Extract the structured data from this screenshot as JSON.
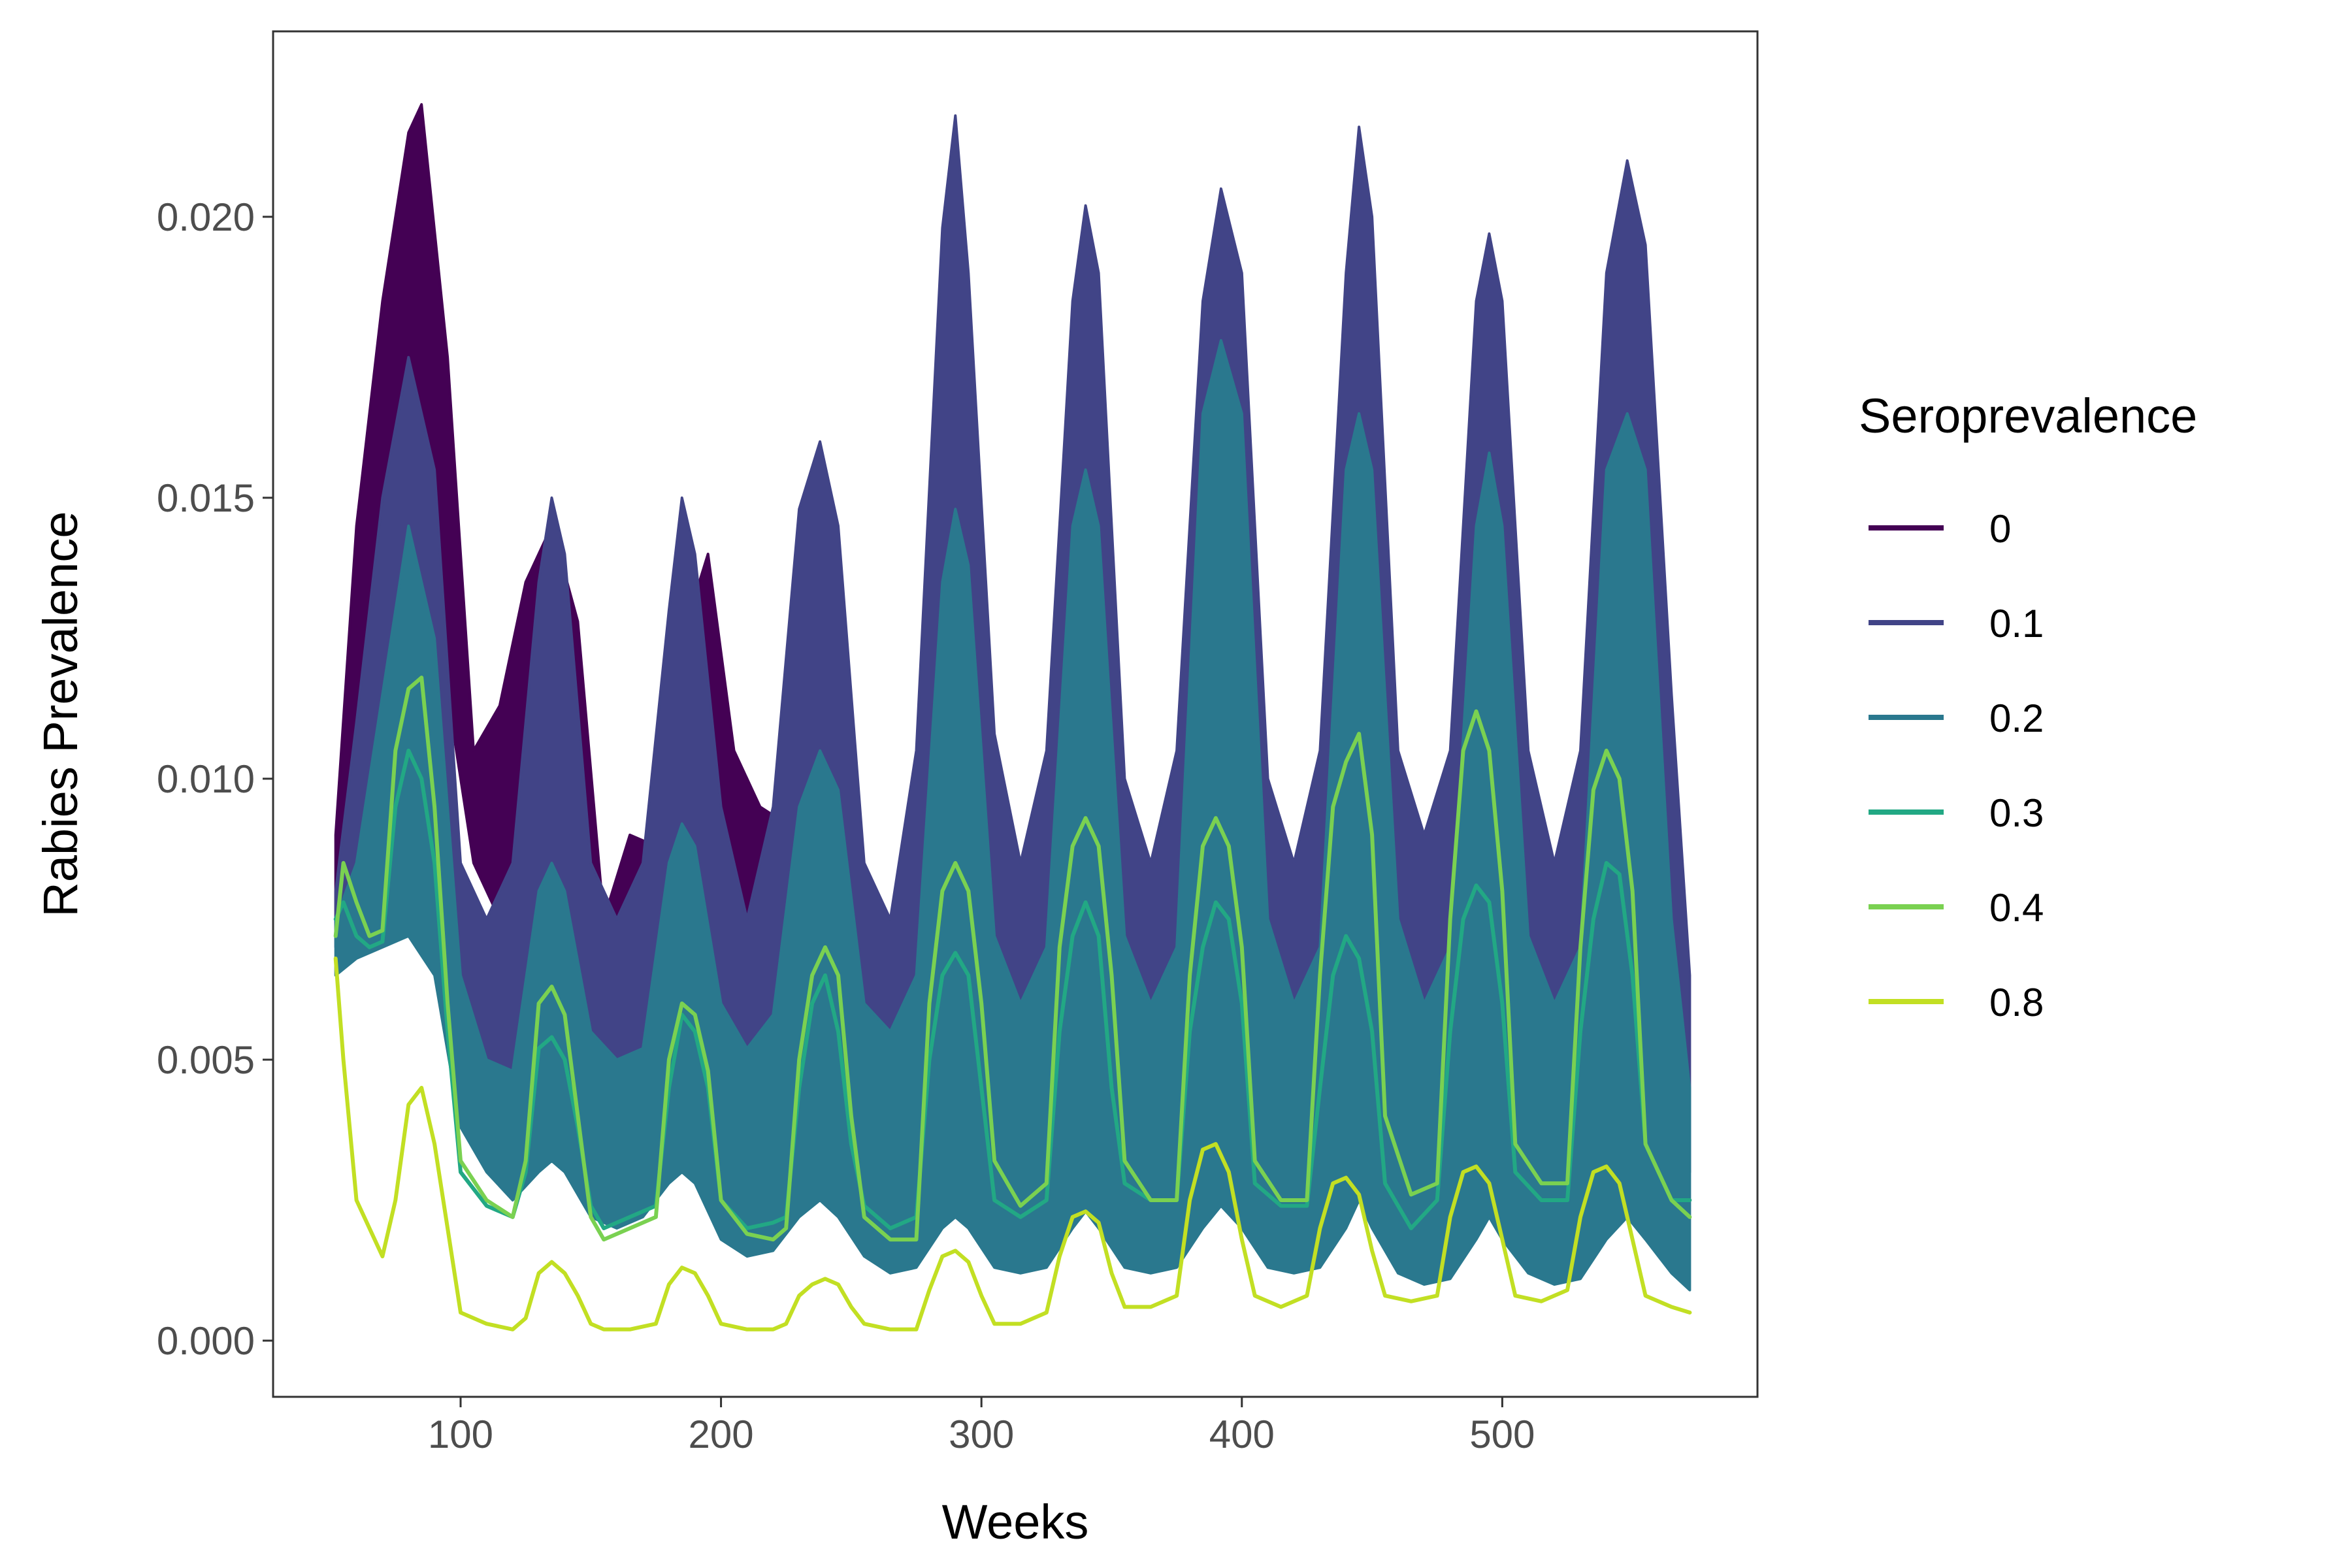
{
  "chart_data": {
    "type": "line",
    "xlabel": "Weeks",
    "ylabel": "Rabies Prevalence",
    "xlim": [
      28,
      598
    ],
    "ylim": [
      -0.001,
      0.0233
    ],
    "x_ticks": [
      100,
      200,
      300,
      400,
      500
    ],
    "x_tick_labels": [
      "100",
      "200",
      "300",
      "400",
      "500"
    ],
    "y_ticks": [
      0,
      0.005,
      0.01,
      0.015,
      0.02
    ],
    "y_tick_labels": [
      "0.000",
      "0.005",
      "0.010",
      "0.015",
      "0.020"
    ],
    "grid": false,
    "legend": {
      "title": "Seroprevalence",
      "placement": "right"
    },
    "series": [
      {
        "name": "0",
        "color": "#440154",
        "style": "band",
        "x": [
          52,
          60,
          70,
          80,
          85,
          95,
          105,
          115,
          125,
          135,
          145,
          155,
          165,
          175,
          185,
          195,
          205,
          215,
          225
        ],
        "upper": [
          0.009,
          0.0145,
          0.0185,
          0.0215,
          0.022,
          0.0175,
          0.0105,
          0.0113,
          0.0135,
          0.0145,
          0.0128,
          0.0075,
          0.009,
          0.0088,
          0.0125,
          0.014,
          0.0105,
          0.0095,
          0.0092
        ],
        "lower": [
          0.0075,
          0.009,
          0.0125,
          0.0145,
          0.0155,
          0.0115,
          0.0085,
          0.0075,
          0.0065,
          0.0075,
          0.0065,
          0.005,
          0.0055,
          0.006,
          0.0065,
          0.007,
          0.0065,
          0.006,
          0.006
        ]
      },
      {
        "name": "0.1",
        "color": "#414487",
        "style": "band",
        "x": [
          52,
          60,
          70,
          80,
          90,
          100,
          110,
          120,
          130,
          135,
          140,
          150,
          160,
          170,
          180,
          185,
          190,
          200,
          210,
          220,
          230,
          238,
          245,
          255,
          265,
          275,
          285,
          290,
          295,
          305,
          315,
          325,
          335,
          340,
          345,
          355,
          365,
          375,
          385,
          392,
          400,
          410,
          420,
          430,
          440,
          445,
          450,
          460,
          470,
          480,
          490,
          495,
          500,
          510,
          520,
          530,
          540,
          548,
          555,
          565,
          572
        ],
        "upper": [
          0.008,
          0.011,
          0.015,
          0.0175,
          0.0155,
          0.0085,
          0.0075,
          0.0085,
          0.0135,
          0.015,
          0.014,
          0.0085,
          0.0075,
          0.0085,
          0.013,
          0.015,
          0.014,
          0.0095,
          0.0075,
          0.0095,
          0.0148,
          0.016,
          0.0145,
          0.0085,
          0.0075,
          0.0105,
          0.0198,
          0.0218,
          0.019,
          0.0108,
          0.0085,
          0.0105,
          0.0185,
          0.0202,
          0.019,
          0.01,
          0.0085,
          0.0105,
          0.0185,
          0.0205,
          0.019,
          0.01,
          0.0085,
          0.0105,
          0.019,
          0.0216,
          0.02,
          0.0105,
          0.009,
          0.0105,
          0.0185,
          0.0197,
          0.0185,
          0.0105,
          0.0085,
          0.0105,
          0.019,
          0.021,
          0.0195,
          0.0115,
          0.0065
        ],
        "lower": [
          0.007,
          0.0075,
          0.0085,
          0.0085,
          0.0075,
          0.0045,
          0.004,
          0.004,
          0.0055,
          0.006,
          0.0055,
          0.0035,
          0.003,
          0.0035,
          0.005,
          0.0055,
          0.005,
          0.0035,
          0.003,
          0.0035,
          0.005,
          0.0055,
          0.005,
          0.003,
          0.0028,
          0.0035,
          0.0055,
          0.006,
          0.0055,
          0.0035,
          0.003,
          0.0035,
          0.0055,
          0.006,
          0.0055,
          0.0035,
          0.003,
          0.0035,
          0.0055,
          0.006,
          0.0055,
          0.0035,
          0.003,
          0.0035,
          0.0055,
          0.006,
          0.0055,
          0.0035,
          0.003,
          0.0035,
          0.0055,
          0.006,
          0.0055,
          0.0035,
          0.003,
          0.0035,
          0.0055,
          0.006,
          0.0055,
          0.0035,
          0.003
        ]
      },
      {
        "name": "0.2",
        "color": "#2a788e",
        "style": "band",
        "x": [
          52,
          60,
          70,
          80,
          90,
          100,
          110,
          120,
          130,
          135,
          140,
          150,
          160,
          170,
          180,
          185,
          190,
          200,
          210,
          220,
          230,
          238,
          245,
          255,
          265,
          275,
          285,
          290,
          295,
          305,
          315,
          325,
          335,
          340,
          345,
          355,
          365,
          375,
          385,
          392,
          400,
          410,
          420,
          430,
          440,
          445,
          450,
          460,
          470,
          480,
          490,
          495,
          500,
          510,
          520,
          530,
          540,
          548,
          555,
          565,
          572
        ],
        "upper": [
          0.0075,
          0.0085,
          0.0115,
          0.0145,
          0.0125,
          0.0065,
          0.005,
          0.0048,
          0.008,
          0.0085,
          0.008,
          0.0055,
          0.005,
          0.0052,
          0.0085,
          0.0092,
          0.0088,
          0.006,
          0.0052,
          0.0058,
          0.0095,
          0.0105,
          0.0098,
          0.006,
          0.0055,
          0.0065,
          0.0135,
          0.0148,
          0.0138,
          0.0072,
          0.006,
          0.007,
          0.0145,
          0.0155,
          0.0145,
          0.0072,
          0.006,
          0.007,
          0.0165,
          0.0178,
          0.0165,
          0.0075,
          0.006,
          0.007,
          0.0155,
          0.0165,
          0.0155,
          0.0075,
          0.006,
          0.007,
          0.0145,
          0.0158,
          0.0145,
          0.0072,
          0.006,
          0.007,
          0.0155,
          0.0165,
          0.0155,
          0.0075,
          0.0045
        ],
        "lower": [
          0.0065,
          0.0068,
          0.007,
          0.0072,
          0.0065,
          0.0038,
          0.003,
          0.0025,
          0.003,
          0.0032,
          0.003,
          0.0022,
          0.002,
          0.0022,
          0.0028,
          0.003,
          0.0028,
          0.0018,
          0.0015,
          0.0016,
          0.0022,
          0.0025,
          0.0022,
          0.0015,
          0.0012,
          0.0013,
          0.002,
          0.0022,
          0.002,
          0.0013,
          0.0012,
          0.0013,
          0.002,
          0.0023,
          0.002,
          0.0013,
          0.0012,
          0.0013,
          0.002,
          0.0024,
          0.002,
          0.0013,
          0.0012,
          0.0013,
          0.002,
          0.0025,
          0.002,
          0.0012,
          0.001,
          0.0011,
          0.0018,
          0.0022,
          0.0018,
          0.0012,
          0.001,
          0.0011,
          0.0018,
          0.0022,
          0.0018,
          0.0012,
          0.0009
        ]
      },
      {
        "name": "0.3",
        "color": "#22a884",
        "style": "line",
        "x": [
          52,
          55,
          60,
          65,
          70,
          75,
          80,
          85,
          90,
          95,
          100,
          110,
          120,
          125,
          130,
          135,
          140,
          145,
          150,
          155,
          165,
          175,
          180,
          185,
          190,
          195,
          200,
          210,
          220,
          225,
          230,
          235,
          240,
          245,
          250,
          255,
          265,
          275,
          280,
          285,
          290,
          295,
          300,
          305,
          315,
          325,
          330,
          335,
          340,
          345,
          350,
          355,
          365,
          375,
          380,
          385,
          390,
          395,
          400,
          405,
          415,
          425,
          430,
          435,
          440,
          445,
          450,
          455,
          465,
          475,
          480,
          485,
          490,
          495,
          500,
          505,
          515,
          525,
          530,
          535,
          540,
          545,
          550,
          555,
          565,
          572
        ],
        "y": [
          0.0075,
          0.0078,
          0.0072,
          0.007,
          0.0071,
          0.0095,
          0.0105,
          0.01,
          0.0085,
          0.0055,
          0.003,
          0.0024,
          0.0022,
          0.003,
          0.0052,
          0.0054,
          0.005,
          0.0038,
          0.0024,
          0.002,
          0.0022,
          0.0024,
          0.0045,
          0.0058,
          0.0055,
          0.0045,
          0.0025,
          0.002,
          0.0021,
          0.0022,
          0.0045,
          0.006,
          0.0065,
          0.0055,
          0.0035,
          0.0024,
          0.002,
          0.0022,
          0.005,
          0.0065,
          0.0069,
          0.0065,
          0.0045,
          0.0025,
          0.0022,
          0.0025,
          0.0055,
          0.0072,
          0.0078,
          0.0072,
          0.0045,
          0.0028,
          0.0025,
          0.0025,
          0.0055,
          0.007,
          0.0078,
          0.0075,
          0.006,
          0.0028,
          0.0024,
          0.0024,
          0.0045,
          0.0065,
          0.0072,
          0.0068,
          0.0055,
          0.0028,
          0.002,
          0.0025,
          0.0055,
          0.0075,
          0.0081,
          0.0078,
          0.006,
          0.003,
          0.0025,
          0.0025,
          0.0055,
          0.0075,
          0.0085,
          0.0083,
          0.0065,
          0.0035,
          0.0025,
          0.0025
        ]
      },
      {
        "name": "0.4",
        "color": "#7ad151",
        "style": "line",
        "x": [
          52,
          55,
          60,
          65,
          70,
          75,
          80,
          85,
          90,
          95,
          100,
          110,
          120,
          125,
          130,
          135,
          140,
          145,
          150,
          155,
          165,
          175,
          180,
          185,
          190,
          195,
          200,
          210,
          220,
          225,
          230,
          235,
          240,
          245,
          250,
          255,
          265,
          275,
          280,
          285,
          290,
          295,
          300,
          305,
          315,
          325,
          330,
          335,
          340,
          345,
          350,
          355,
          365,
          375,
          380,
          385,
          390,
          395,
          400,
          405,
          415,
          425,
          430,
          435,
          440,
          445,
          450,
          455,
          465,
          475,
          480,
          485,
          490,
          495,
          500,
          505,
          515,
          525,
          530,
          535,
          540,
          545,
          550,
          555,
          565,
          572
        ],
        "y": [
          0.0072,
          0.0085,
          0.0078,
          0.0072,
          0.0073,
          0.0105,
          0.0116,
          0.0118,
          0.0095,
          0.006,
          0.0032,
          0.0025,
          0.0022,
          0.0032,
          0.006,
          0.0063,
          0.0058,
          0.004,
          0.0022,
          0.0018,
          0.002,
          0.0022,
          0.005,
          0.006,
          0.0058,
          0.0048,
          0.0025,
          0.0019,
          0.0018,
          0.002,
          0.005,
          0.0065,
          0.007,
          0.0065,
          0.004,
          0.0022,
          0.0018,
          0.0018,
          0.006,
          0.008,
          0.0085,
          0.008,
          0.006,
          0.0032,
          0.0024,
          0.0028,
          0.007,
          0.0088,
          0.0093,
          0.0088,
          0.0065,
          0.0032,
          0.0025,
          0.0025,
          0.0065,
          0.0088,
          0.0093,
          0.0088,
          0.007,
          0.0032,
          0.0025,
          0.0025,
          0.0065,
          0.0095,
          0.0103,
          0.0108,
          0.009,
          0.004,
          0.0026,
          0.0028,
          0.0075,
          0.0105,
          0.0112,
          0.0105,
          0.008,
          0.0035,
          0.0028,
          0.0028,
          0.007,
          0.0098,
          0.0105,
          0.01,
          0.008,
          0.0035,
          0.0025,
          0.0022
        ]
      },
      {
        "name": "0.8",
        "color": "#c2df23",
        "style": "line",
        "x": [
          52,
          55,
          60,
          65,
          70,
          75,
          80,
          85,
          90,
          95,
          100,
          110,
          120,
          125,
          130,
          135,
          140,
          145,
          150,
          155,
          165,
          175,
          180,
          185,
          190,
          195,
          200,
          210,
          220,
          225,
          230,
          235,
          240,
          245,
          250,
          255,
          265,
          275,
          280,
          285,
          290,
          295,
          300,
          305,
          315,
          325,
          330,
          335,
          340,
          345,
          350,
          355,
          365,
          375,
          380,
          385,
          390,
          395,
          400,
          405,
          415,
          425,
          430,
          435,
          440,
          445,
          450,
          455,
          465,
          475,
          480,
          485,
          490,
          495,
          500,
          505,
          515,
          525,
          530,
          535,
          540,
          545,
          550,
          555,
          565,
          572
        ],
        "y": [
          0.0068,
          0.005,
          0.0025,
          0.002,
          0.0015,
          0.0025,
          0.0042,
          0.0045,
          0.0035,
          0.002,
          0.0005,
          0.0003,
          0.0002,
          0.0004,
          0.0012,
          0.0014,
          0.0012,
          0.0008,
          0.0003,
          0.0002,
          0.0002,
          0.0003,
          0.001,
          0.0013,
          0.0012,
          0.0008,
          0.0003,
          0.0002,
          0.0002,
          0.0003,
          0.0008,
          0.001,
          0.0011,
          0.001,
          0.0006,
          0.0003,
          0.0002,
          0.0002,
          0.0009,
          0.0015,
          0.0016,
          0.0014,
          0.0008,
          0.0003,
          0.0003,
          0.0005,
          0.0015,
          0.0022,
          0.0023,
          0.0021,
          0.0012,
          0.0006,
          0.0006,
          0.0008,
          0.0025,
          0.0034,
          0.0035,
          0.003,
          0.0018,
          0.0008,
          0.0006,
          0.0008,
          0.002,
          0.0028,
          0.0029,
          0.0026,
          0.0016,
          0.0008,
          0.0007,
          0.0008,
          0.0022,
          0.003,
          0.0031,
          0.0028,
          0.0018,
          0.0008,
          0.0007,
          0.0009,
          0.0022,
          0.003,
          0.0031,
          0.0028,
          0.0018,
          0.0008,
          0.0006,
          0.0005
        ]
      }
    ]
  }
}
